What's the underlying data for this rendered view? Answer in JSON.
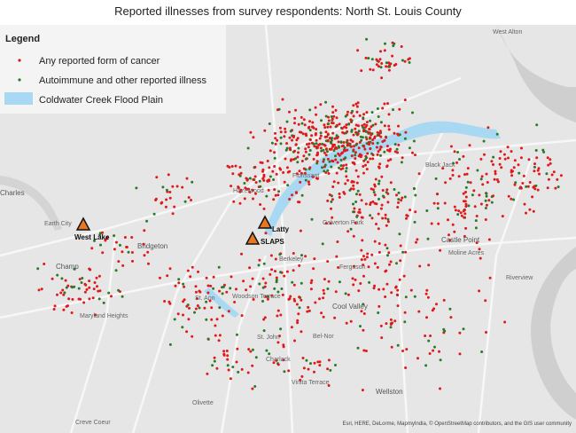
{
  "title": "Reported illnesses from survey respondents:  North St. Louis County",
  "legend": {
    "title": "Legend",
    "items": [
      "Any reported form of cancer",
      "Autoimmune and other reported illness",
      "Coldwater Creek Flood Plain"
    ]
  },
  "sites": [
    "West Lake",
    "Latty",
    "SLAPS"
  ],
  "places": [
    "West Alton",
    "Charles",
    "Earth City",
    "Bridgeton",
    "Champ",
    "Maryland Heights",
    "St. Ann",
    "Woodson Terrace",
    "Berkeley",
    "Ferguson",
    "Cool Valley",
    "Bel-Nor",
    "St. John",
    "Charlack",
    "Vinita Terrace",
    "Wellston",
    "Olivette",
    "Creve Coeur",
    "Florissant",
    "Hazelwood",
    "Black Jack",
    "Castle Point",
    "Moline Acres",
    "Riverview",
    "Calverton Park"
  ],
  "attribution": "Esri, HERE, DeLorme, MapmyIndia, © OpenStreetMap contributors, and the GIS user community"
}
